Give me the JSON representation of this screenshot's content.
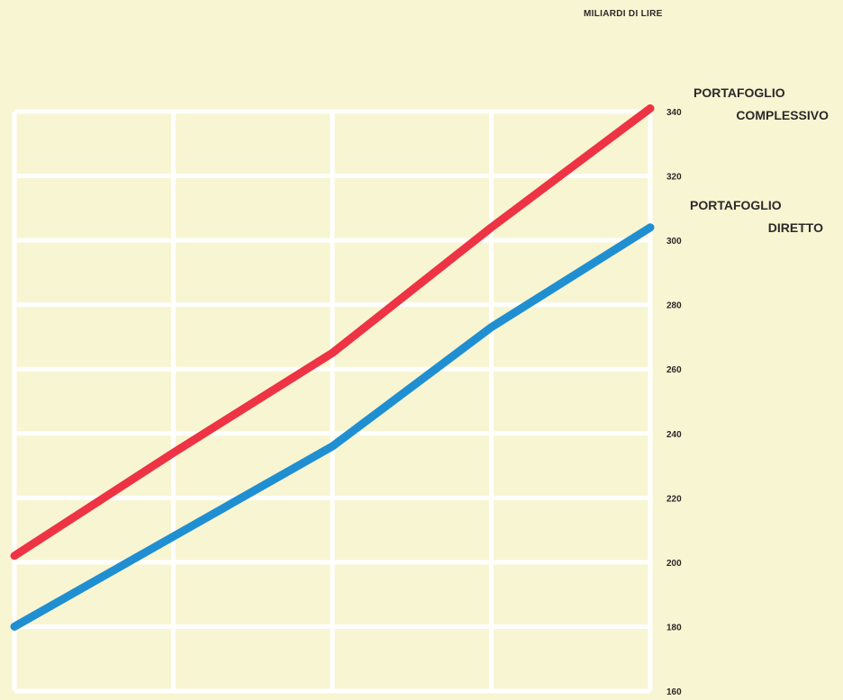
{
  "chart_data": {
    "type": "line",
    "ylabel": "MILIARDI DI LIRE",
    "ylim": [
      160,
      340
    ],
    "yticks": [
      160,
      180,
      200,
      220,
      240,
      260,
      280,
      300,
      320,
      340
    ],
    "grid": true,
    "x": [
      0,
      1,
      2,
      3,
      4
    ],
    "series": [
      {
        "name_line1": "PORTAFOGLIO",
        "name_line2": "COMPLESSIVO",
        "color": "#ee3344",
        "values": [
          202,
          234,
          265,
          304,
          341
        ]
      },
      {
        "name_line1": "PORTAFOGLIO",
        "name_line2": "DIRETTO",
        "color": "#1f8fd2",
        "values": [
          180,
          208,
          236,
          273,
          304
        ]
      }
    ]
  }
}
